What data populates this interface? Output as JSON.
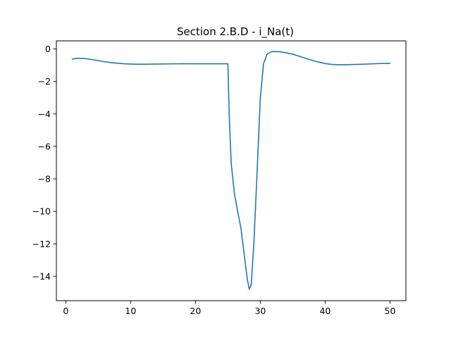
{
  "chart_data": {
    "type": "line",
    "title": "Section 2.B.D - i_Na(t)",
    "xlabel": "",
    "ylabel": "",
    "xlim": [
      -1.45,
      52.45
    ],
    "ylim": [
      -15.5,
      0.5
    ],
    "x_ticks": [
      0,
      10,
      20,
      30,
      40,
      50
    ],
    "y_ticks": [
      0,
      -2,
      -4,
      -6,
      -8,
      -10,
      -12,
      -14
    ],
    "x_tick_labels": [
      "0",
      "10",
      "20",
      "30",
      "40",
      "50"
    ],
    "y_tick_labels": [
      "0",
      "−2",
      "−4",
      "−6",
      "−8",
      "−10",
      "−12",
      "−14"
    ],
    "grid": false,
    "legend": "none",
    "series": [
      {
        "name": "i_Na(t)",
        "color": "#1f77b4",
        "x": [
          1,
          2,
          3,
          4,
          5,
          6,
          7,
          8,
          9,
          10,
          11,
          12,
          14,
          16,
          18,
          20,
          22,
          24,
          24.9,
          25,
          25.2,
          25.5,
          26,
          26.5,
          27,
          27.5,
          28,
          28.3,
          28.6,
          29,
          29.5,
          30,
          30.5,
          31,
          31.5,
          32,
          33,
          34,
          35,
          36,
          37,
          38,
          39,
          40,
          41,
          42,
          43,
          45,
          47,
          49,
          50
        ],
        "values": [
          -0.62,
          -0.57,
          -0.59,
          -0.65,
          -0.72,
          -0.79,
          -0.84,
          -0.88,
          -0.91,
          -0.93,
          -0.94,
          -0.94,
          -0.93,
          -0.92,
          -0.91,
          -0.91,
          -0.91,
          -0.91,
          -0.91,
          -0.91,
          -4.0,
          -7.0,
          -8.9,
          -10.0,
          -11.0,
          -12.6,
          -14.2,
          -14.8,
          -14.5,
          -12.0,
          -7.6,
          -3.0,
          -0.9,
          -0.35,
          -0.2,
          -0.16,
          -0.17,
          -0.24,
          -0.32,
          -0.45,
          -0.58,
          -0.7,
          -0.81,
          -0.9,
          -0.95,
          -0.97,
          -0.97,
          -0.95,
          -0.92,
          -0.89,
          -0.89
        ]
      }
    ]
  }
}
